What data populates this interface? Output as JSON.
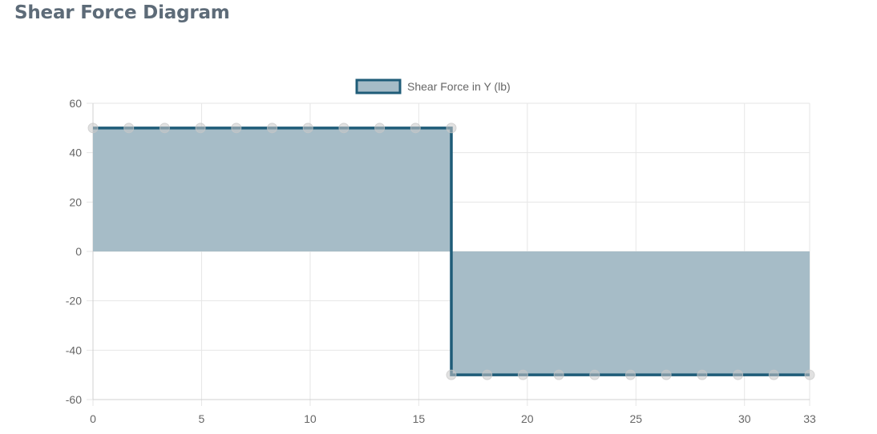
{
  "page": {
    "title": "Shear Force Diagram"
  },
  "colors": {
    "line": "#1f5c78",
    "fill": "#a6bcc7",
    "grid": "#e6e6e6",
    "axis_text": "#666666",
    "point": "#c8c8c8"
  },
  "chart_data": {
    "type": "area",
    "legend": {
      "position": "top-center",
      "entries": [
        "Shear Force in Y (lb)"
      ]
    },
    "xlim": [
      0,
      33
    ],
    "ylim": [
      -60,
      60
    ],
    "x_ticks": [
      0,
      5,
      10,
      15,
      20,
      25,
      30,
      33
    ],
    "y_ticks": [
      60,
      40,
      20,
      0,
      -20,
      -40,
      -60
    ],
    "grid": true,
    "series": [
      {
        "name": "Shear Force in Y (lb)",
        "points": [
          [
            0,
            50
          ],
          [
            1.65,
            50
          ],
          [
            3.3,
            50
          ],
          [
            4.95,
            50
          ],
          [
            6.6,
            50
          ],
          [
            8.25,
            50
          ],
          [
            9.9,
            50
          ],
          [
            11.55,
            50
          ],
          [
            13.2,
            50
          ],
          [
            14.85,
            50
          ],
          [
            16.5,
            50
          ],
          [
            16.5,
            -50
          ],
          [
            18.15,
            -50
          ],
          [
            19.8,
            -50
          ],
          [
            21.45,
            -50
          ],
          [
            23.1,
            -50
          ],
          [
            24.75,
            -50
          ],
          [
            26.4,
            -50
          ],
          [
            28.05,
            -50
          ],
          [
            29.7,
            -50
          ],
          [
            31.35,
            -50
          ],
          [
            33,
            -50
          ]
        ]
      }
    ]
  }
}
